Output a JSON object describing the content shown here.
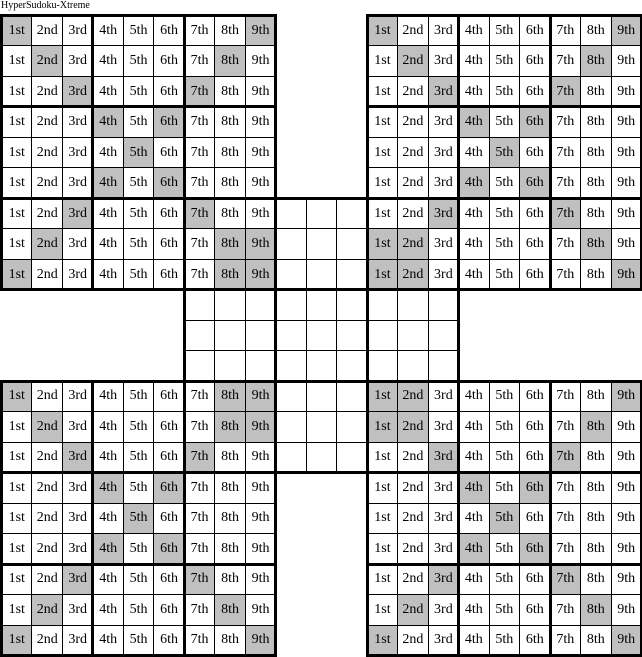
{
  "title": "HyperSudoku-Xtreme",
  "column_labels": [
    "1st",
    "2nd",
    "3rd",
    "4th",
    "5th",
    "6th",
    "7th",
    "8th",
    "9th"
  ],
  "colors": {
    "shaded": "#c0c0c0",
    "cell": "#ffffff",
    "line": "#000000"
  },
  "grids": [
    {
      "name": "top-left",
      "labeled": true,
      "shaded": [
        [
          0,
          8
        ],
        [
          1,
          7
        ],
        [
          2,
          6
        ],
        [
          3,
          5
        ],
        [
          4
        ],
        [
          3,
          5
        ],
        [
          2,
          6
        ],
        [
          1,
          7,
          8
        ],
        [
          0,
          7,
          8
        ]
      ]
    },
    {
      "name": "top-right",
      "labeled": true,
      "shaded": [
        [
          0,
          8
        ],
        [
          1,
          7
        ],
        [
          2,
          6
        ],
        [
          3,
          5
        ],
        [
          4
        ],
        [
          3,
          5
        ],
        [
          2,
          6
        ],
        [
          0,
          1,
          7
        ],
        [
          0,
          1,
          8
        ]
      ]
    },
    {
      "name": "bottom-left",
      "labeled": true,
      "shaded": [
        [
          0,
          7,
          8
        ],
        [
          1,
          7,
          8
        ],
        [
          2,
          6
        ],
        [
          3,
          5
        ],
        [
          4
        ],
        [
          3,
          5
        ],
        [
          2,
          6
        ],
        [
          1,
          7
        ],
        [
          0,
          8
        ]
      ]
    },
    {
      "name": "bottom-right",
      "labeled": true,
      "shaded": [
        [
          0,
          1,
          8
        ],
        [
          0,
          1,
          7
        ],
        [
          2,
          6
        ],
        [
          3,
          5
        ],
        [
          4
        ],
        [
          3,
          5
        ],
        [
          2,
          6
        ],
        [
          1,
          7
        ],
        [
          0,
          8
        ]
      ]
    },
    {
      "name": "center",
      "labeled": false,
      "shaded": []
    }
  ]
}
